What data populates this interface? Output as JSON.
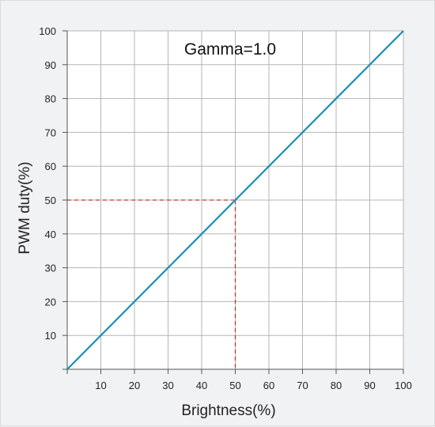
{
  "chart_data": {
    "type": "line",
    "title": "Gamma=1.0",
    "xlabel": "Brightness(%)",
    "ylabel": "PWM duty(%)",
    "xlim": [
      0,
      100
    ],
    "ylim": [
      0,
      100
    ],
    "x_ticks": [
      10,
      20,
      30,
      40,
      50,
      60,
      70,
      80,
      90,
      100
    ],
    "y_ticks": [
      10,
      20,
      30,
      40,
      50,
      60,
      70,
      80,
      90,
      100
    ],
    "grid": true,
    "series": [
      {
        "x": [
          0,
          100
        ],
        "y": [
          0,
          100
        ],
        "color": "#1a8fb5"
      }
    ],
    "reference_point": {
      "x": 50,
      "y": 50,
      "color": "#c0392b",
      "style": "dashed"
    }
  }
}
